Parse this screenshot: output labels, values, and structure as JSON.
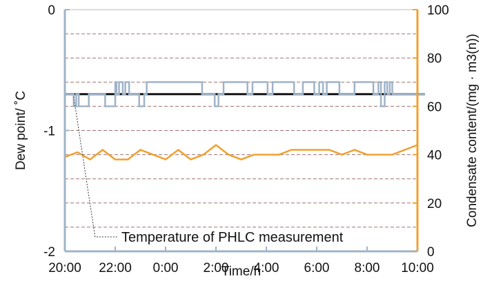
{
  "chart_data": {
    "type": "line",
    "xlabel": "Time/h",
    "ylabel_left": "Dew point/ ˚C",
    "ylabel_right": "Condensate content/(mg · m3(n))",
    "x_range_hours": [
      0,
      14
    ],
    "x_tick_labels": [
      "20:00",
      "22:00",
      "0:00",
      "2:00",
      "4:00",
      "6:00",
      "8:00",
      "10:00"
    ],
    "x_ticks_hours": [
      0,
      2,
      4,
      6,
      8,
      10,
      12,
      14
    ],
    "y_left": {
      "range": [
        -2,
        0
      ],
      "ticks": [
        0,
        -1,
        -2
      ],
      "tick_labels": [
        "0",
        "-1",
        "-2"
      ]
    },
    "y_right": {
      "range": [
        0,
        100
      ],
      "ticks": [
        0,
        20,
        40,
        60,
        80,
        100
      ],
      "tick_labels": [
        "0",
        "20",
        "40",
        "60",
        "80",
        "100"
      ]
    },
    "grid": "horizontal dashed",
    "colors": {
      "dew_point": "#9fb3c8",
      "condensate": "#f0a030",
      "reference": "#111111",
      "right_axis": "#f0a030",
      "left_axis": "#9fb3c8"
    },
    "annotation": "Temperature of PHLC measurement",
    "series": [
      {
        "axis": "left",
        "color": "#111111",
        "style": "solid-thick",
        "x_hours": [
          0,
          14.3
        ],
        "values": [
          -0.7,
          -0.7
        ]
      },
      {
        "axis": "left",
        "color": "#9fb3c8",
        "style": "step",
        "x_hours": [
          0,
          0.35,
          0.35,
          0.45,
          0.45,
          0.55,
          0.55,
          0.95,
          0.95,
          1.6,
          1.6,
          2.0,
          2.0,
          2.05,
          2.05,
          2.15,
          2.15,
          2.3,
          2.3,
          2.4,
          2.4,
          2.55,
          2.55,
          2.95,
          2.95,
          3.15,
          3.15,
          3.25,
          3.25,
          5.45,
          5.45,
          5.95,
          5.95,
          6.1,
          6.1,
          6.3,
          6.3,
          7.25,
          7.25,
          7.45,
          7.45,
          8.05,
          8.05,
          8.25,
          8.25,
          9.1,
          9.1,
          9.45,
          9.45,
          9.9,
          9.9,
          10.1,
          10.1,
          10.25,
          10.25,
          10.4,
          10.4,
          10.9,
          10.9,
          11.5,
          11.5,
          12.25,
          12.25,
          12.45,
          12.45,
          12.55,
          12.55,
          12.7,
          12.7,
          12.8,
          12.8,
          12.9,
          12.9,
          13.0,
          13.0,
          14.3
        ],
        "values": [
          -0.7,
          -0.7,
          -0.8,
          -0.8,
          -0.7,
          -0.7,
          -0.8,
          -0.8,
          -0.7,
          -0.7,
          -0.8,
          -0.8,
          -0.6,
          -0.6,
          -0.7,
          -0.7,
          -0.6,
          -0.6,
          -0.7,
          -0.7,
          -0.6,
          -0.6,
          -0.7,
          -0.7,
          -0.8,
          -0.8,
          -0.7,
          -0.7,
          -0.6,
          -0.6,
          -0.7,
          -0.7,
          -0.8,
          -0.8,
          -0.7,
          -0.7,
          -0.6,
          -0.6,
          -0.7,
          -0.7,
          -0.6,
          -0.6,
          -0.7,
          -0.7,
          -0.6,
          -0.6,
          -0.7,
          -0.7,
          -0.6,
          -0.6,
          -0.7,
          -0.7,
          -0.6,
          -0.6,
          -0.7,
          -0.7,
          -0.6,
          -0.6,
          -0.7,
          -0.7,
          -0.6,
          -0.6,
          -0.7,
          -0.7,
          -0.6,
          -0.6,
          -0.8,
          -0.8,
          -0.6,
          -0.6,
          -0.7,
          -0.7,
          -0.6,
          -0.6,
          -0.7,
          -0.7
        ]
      },
      {
        "axis": "right",
        "color": "#f0a030",
        "style": "solid",
        "x_hours": [
          0,
          0.5,
          1.0,
          1.5,
          2.0,
          2.5,
          3.0,
          3.5,
          4.0,
          4.5,
          5.0,
          5.5,
          6.0,
          6.5,
          7.0,
          7.5,
          8.0,
          8.5,
          9.0,
          9.5,
          10.0,
          10.5,
          11.0,
          11.5,
          12.0,
          12.5,
          13.0,
          13.5,
          14.0
        ],
        "values": [
          39,
          41,
          38,
          42,
          38,
          38,
          42,
          40,
          38,
          42,
          38,
          40,
          44,
          40,
          38,
          40,
          40,
          40,
          42,
          42,
          42,
          42,
          40,
          42,
          40,
          40,
          40,
          42,
          44
        ]
      }
    ]
  }
}
